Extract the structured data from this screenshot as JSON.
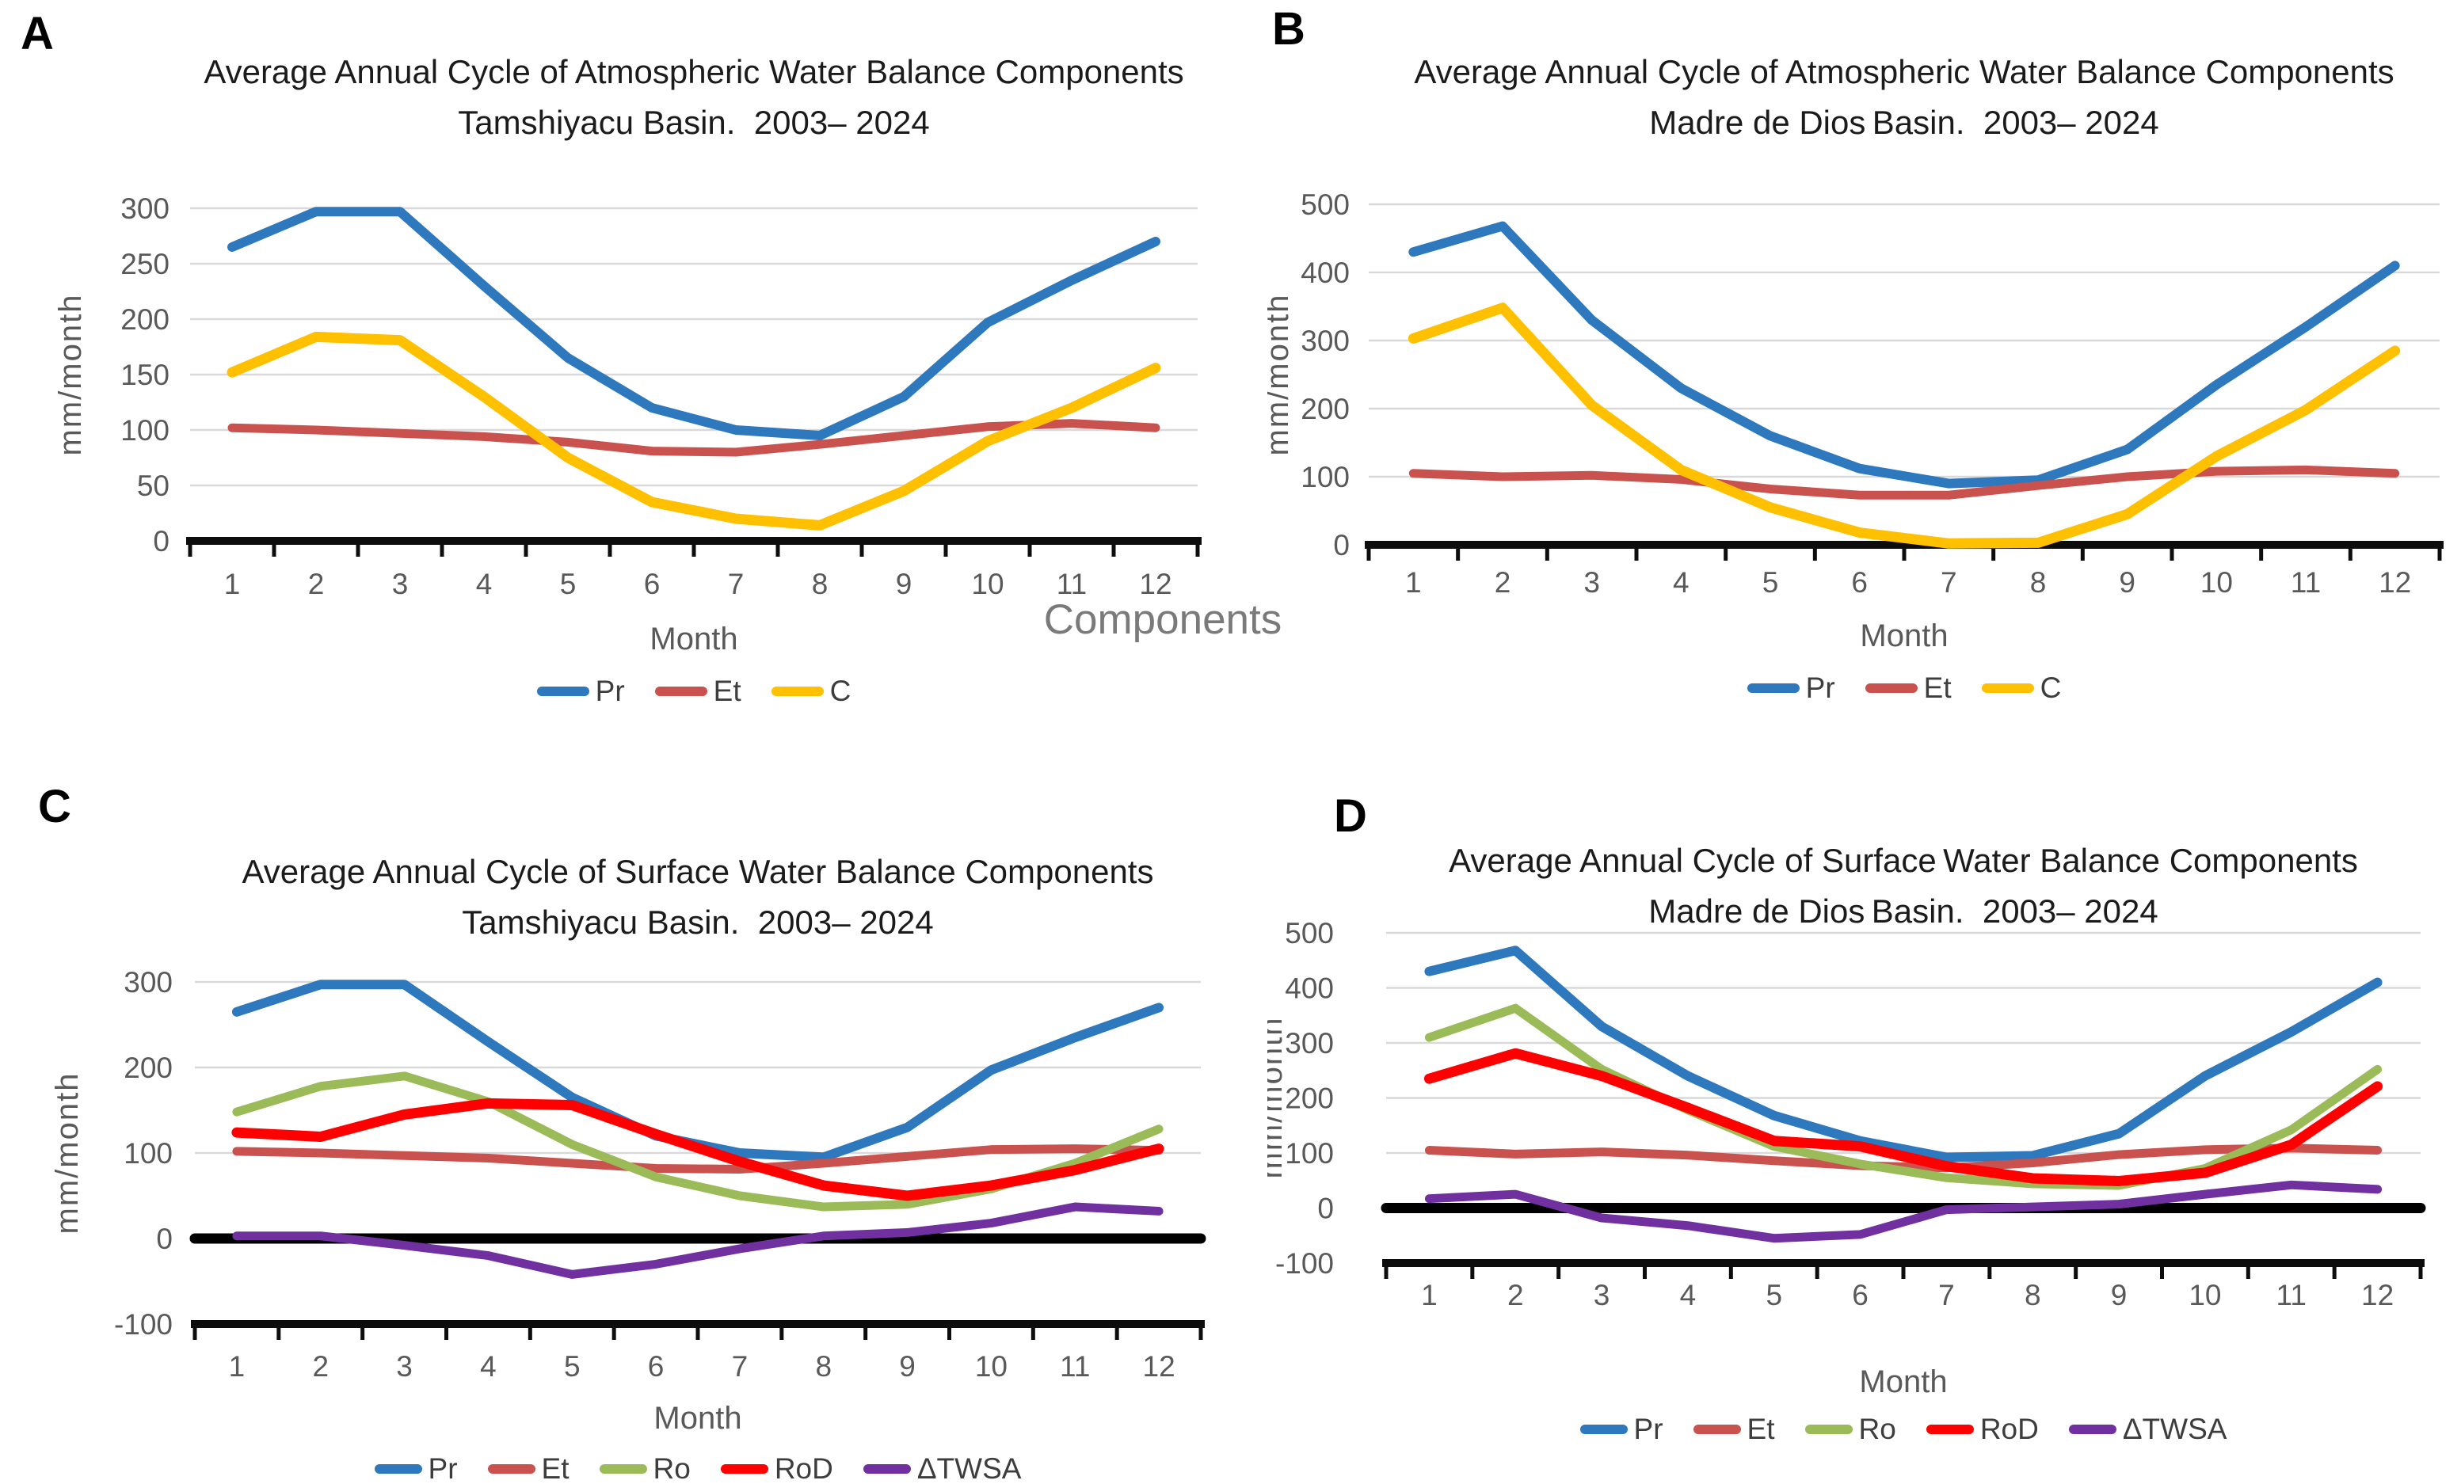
{
  "figure": {
    "overlay_text": "Components",
    "panel_labels": [
      "A",
      "B",
      "C",
      "D"
    ]
  },
  "chart_data": [
    {
      "panel_label": "A",
      "type": "line",
      "title": "Average Annual Cycle of Atmospheric Water Balance Components",
      "subtitle": "Tamshiyacu Basin.  2003– 2024",
      "xlabel": "Month",
      "ylabel": "mm/month",
      "x": [
        1,
        2,
        3,
        4,
        5,
        6,
        7,
        8,
        9,
        10,
        11,
        12
      ],
      "ylim": [
        0,
        300
      ],
      "yticks": [
        0,
        50,
        100,
        150,
        200,
        250,
        300
      ],
      "grid": true,
      "legend_position": "bottom",
      "zero_line": false,
      "series": [
        {
          "name": "Pr",
          "color": "#2E78BE",
          "width": 12,
          "values": [
            265,
            297,
            297,
            230,
            165,
            120,
            100,
            95,
            130,
            197,
            235,
            270
          ]
        },
        {
          "name": "Et",
          "color": "#C9514E",
          "width": 11,
          "values": [
            102,
            100,
            97,
            94,
            89,
            81,
            80,
            87,
            95,
            103,
            106,
            102
          ]
        },
        {
          "name": "C",
          "color": "#FFC000",
          "width": 13,
          "values": [
            152,
            184,
            181,
            130,
            75,
            35,
            20,
            14,
            45,
            90,
            120,
            156
          ]
        }
      ]
    },
    {
      "panel_label": "B",
      "type": "line",
      "title": "Average Annual Cycle of Atmospheric Water Balance Components",
      "subtitle": "Madre de Dios Basin.  2003– 2024",
      "xlabel": "Month",
      "ylabel": "mm/month",
      "x": [
        1,
        2,
        3,
        4,
        5,
        6,
        7,
        8,
        9,
        10,
        11,
        12
      ],
      "ylim": [
        0,
        500
      ],
      "yticks": [
        0,
        100,
        200,
        300,
        400,
        500
      ],
      "grid": true,
      "legend_position": "bottom",
      "zero_line": false,
      "series": [
        {
          "name": "Pr",
          "color": "#2E78BE",
          "width": 12,
          "values": [
            430,
            468,
            330,
            230,
            160,
            112,
            90,
            95,
            140,
            235,
            320,
            410
          ]
        },
        {
          "name": "Et",
          "color": "#C9514E",
          "width": 11,
          "values": [
            105,
            100,
            102,
            96,
            82,
            73,
            73,
            87,
            100,
            108,
            110,
            105
          ]
        },
        {
          "name": "C",
          "color": "#FFC000",
          "width": 13,
          "values": [
            303,
            348,
            205,
            110,
            55,
            18,
            2,
            3,
            45,
            130,
            198,
            285
          ]
        }
      ]
    },
    {
      "panel_label": "C",
      "type": "line",
      "title": "Average Annual Cycle of Surface Water Balance Components",
      "subtitle": "Tamshiyacu Basin.  2003– 2024",
      "xlabel": "Month",
      "ylabel": "mm/month",
      "x": [
        1,
        2,
        3,
        4,
        5,
        6,
        7,
        8,
        9,
        10,
        11,
        12
      ],
      "ylim": [
        -100,
        300
      ],
      "yticks": [
        -100,
        0,
        100,
        200,
        300
      ],
      "grid": true,
      "legend_position": "bottom",
      "zero_line": true,
      "series": [
        {
          "name": "Pr",
          "color": "#2E78BE",
          "width": 12,
          "values": [
            265,
            297,
            297,
            230,
            165,
            120,
            100,
            95,
            130,
            197,
            235,
            270
          ]
        },
        {
          "name": "Et",
          "color": "#C9514E",
          "width": 11,
          "values": [
            102,
            100,
            97,
            94,
            88,
            82,
            81,
            88,
            96,
            104,
            105,
            103
          ]
        },
        {
          "name": "Ro",
          "color": "#9BBB59",
          "width": 11,
          "values": [
            148,
            178,
            190,
            160,
            110,
            72,
            50,
            37,
            40,
            58,
            88,
            128
          ]
        },
        {
          "name": "RoD",
          "color": "#FF0000",
          "width": 13,
          "values": [
            124,
            119,
            145,
            158,
            156,
            122,
            90,
            62,
            50,
            62,
            80,
            105
          ]
        },
        {
          "name": "ΔTWSA",
          "color": "#7030A0",
          "width": 11,
          "values": [
            3,
            3,
            -8,
            -20,
            -42,
            -30,
            -12,
            3,
            7,
            18,
            37,
            32
          ]
        }
      ]
    },
    {
      "panel_label": "D",
      "type": "line",
      "title": "Average Annual Cycle of Surface Water Balance Components",
      "subtitle": "Madre de Dios Basin.  2003– 2024",
      "xlabel": "Month",
      "ylabel": "mm/month",
      "x": [
        1,
        2,
        3,
        4,
        5,
        6,
        7,
        8,
        9,
        10,
        11,
        12
      ],
      "ylim": [
        -100,
        500
      ],
      "yticks": [
        -100,
        0,
        100,
        200,
        300,
        400,
        500
      ],
      "grid": true,
      "legend_position": "bottom",
      "zero_line": true,
      "series": [
        {
          "name": "Pr",
          "color": "#2E78BE",
          "width": 12,
          "values": [
            430,
            468,
            330,
            240,
            168,
            122,
            92,
            95,
            135,
            240,
            320,
            410
          ]
        },
        {
          "name": "Et",
          "color": "#C9514E",
          "width": 11,
          "values": [
            105,
            98,
            102,
            96,
            86,
            77,
            73,
            82,
            97,
            106,
            109,
            105
          ]
        },
        {
          "name": "Ro",
          "color": "#9BBB59",
          "width": 11,
          "values": [
            310,
            363,
            252,
            178,
            112,
            80,
            55,
            44,
            41,
            72,
            142,
            252
          ]
        },
        {
          "name": "RoD",
          "color": "#FF0000",
          "width": 13,
          "values": [
            235,
            281,
            240,
            182,
            122,
            112,
            76,
            54,
            49,
            64,
            115,
            221
          ]
        },
        {
          "name": "ΔTWSA",
          "color": "#7030A0",
          "width": 11,
          "values": [
            17,
            25,
            -18,
            -32,
            -55,
            -48,
            -3,
            2,
            7,
            25,
            42,
            34
          ]
        }
      ]
    }
  ]
}
